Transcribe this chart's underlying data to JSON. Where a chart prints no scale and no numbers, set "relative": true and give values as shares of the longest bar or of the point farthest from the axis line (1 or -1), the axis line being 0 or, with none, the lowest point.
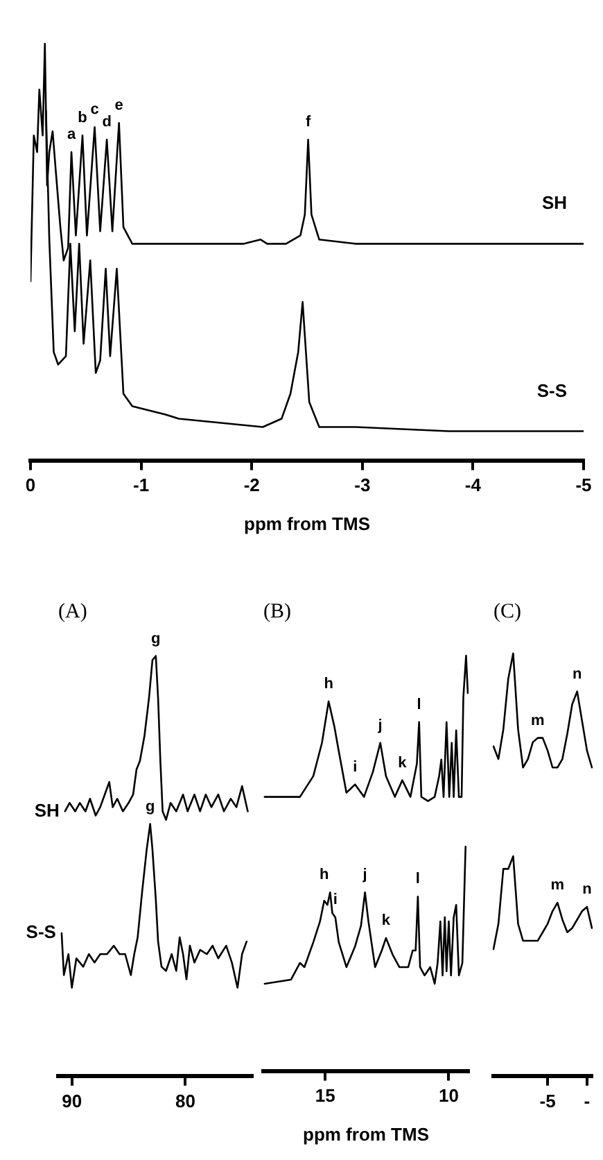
{
  "chart_data": [
    {
      "type": "line",
      "relative": true,
      "xlabel": "ppm from TMS",
      "xlim": [
        0,
        -5
      ],
      "xticks": [
        0,
        -1,
        -2,
        -3,
        -4,
        -5
      ],
      "legend": false,
      "series": [
        {
          "name": "SH",
          "color": "#000000",
          "x": [
            0,
            -0.03,
            -0.06,
            -0.08,
            -0.11,
            -0.13,
            -0.15,
            -0.17,
            -0.2,
            -0.23,
            -0.27,
            -0.3,
            -0.34,
            -0.37,
            -0.41,
            -0.47,
            -0.51,
            -0.58,
            -0.63,
            -0.69,
            -0.74,
            -0.8,
            -0.84,
            -0.92,
            -1.26,
            -1.93,
            -2.08,
            -2.14,
            -2.31,
            -2.44,
            -2.48,
            -2.51,
            -2.54,
            -2.61,
            -2.94,
            -3.78,
            -5
          ],
          "values": [
            0.43,
            0.78,
            0.74,
            0.89,
            0.78,
            1,
            0.66,
            0.74,
            0.79,
            0.69,
            0.56,
            0.48,
            0.51,
            0.74,
            0.54,
            0.78,
            0.54,
            0.8,
            0.55,
            0.77,
            0.55,
            0.81,
            0.56,
            0.52,
            0.52,
            0.52,
            0.53,
            0.52,
            0.52,
            0.54,
            0.59,
            0.77,
            0.59,
            0.53,
            0.52,
            0.52,
            0.52
          ]
        },
        {
          "name": "S-S",
          "color": "#000000",
          "x": [
            -0.14,
            -0.17,
            -0.21,
            -0.25,
            -0.32,
            -0.36,
            -0.4,
            -0.44,
            -0.48,
            -0.54,
            -0.59,
            -0.63,
            -0.68,
            -0.72,
            -0.78,
            -0.82,
            -0.84,
            -0.92,
            -1.22,
            -1.34,
            -2.1,
            -2.27,
            -2.35,
            -2.42,
            -2.46,
            -2.49,
            -2.52,
            -2.61,
            -2.94,
            -3.78,
            -5
          ],
          "values": [
            0.84,
            0.53,
            0.26,
            0.23,
            0.25,
            0.52,
            0.31,
            0.52,
            0.28,
            0.48,
            0.21,
            0.24,
            0.46,
            0.25,
            0.46,
            0.26,
            0.16,
            0.13,
            0.11,
            0.1,
            0.08,
            0.1,
            0.16,
            0.26,
            0.38,
            0.26,
            0.14,
            0.08,
            0.08,
            0.07,
            0.07
          ]
        }
      ],
      "annotations": [
        {
          "text": "a",
          "x": -0.37,
          "y": 0.74
        },
        {
          "text": "b",
          "x": -0.47,
          "y": 0.78
        },
        {
          "text": "c",
          "x": -0.58,
          "y": 0.8
        },
        {
          "text": "d",
          "x": -0.69,
          "y": 0.77
        },
        {
          "text": "e",
          "x": -0.8,
          "y": 0.81
        },
        {
          "text": "f",
          "x": -2.51,
          "y": 0.77
        }
      ]
    },
    {
      "type": "line",
      "relative": true,
      "title": "(A)",
      "xlim": [
        91.2,
        74.1
      ],
      "xticks": [
        90,
        80
      ],
      "legend": false,
      "series": [
        {
          "name": "SH",
          "color": "#000000",
          "x": [
            90.6,
            90.2,
            89.7,
            89.3,
            88.8,
            88.4,
            87.9,
            87.5,
            87.1,
            86.7,
            86.4,
            86.0,
            85.5,
            85.0,
            84.6,
            84.3,
            84.0,
            83.6,
            83.2,
            82.9,
            82.6,
            82.4,
            82.2,
            82.0,
            81.7,
            81.3,
            80.8,
            80.2,
            79.8,
            79.2,
            78.7,
            78.2,
            77.7,
            77.1,
            76.6,
            76.0,
            75.5,
            75.0,
            74.5
          ],
          "values": [
            0.63,
            0.65,
            0.63,
            0.65,
            0.63,
            0.66,
            0.62,
            0.64,
            0.67,
            0.7,
            0.64,
            0.66,
            0.63,
            0.65,
            0.67,
            0.73,
            0.75,
            0.81,
            0.9,
            0.99,
            1,
            0.9,
            0.75,
            0.63,
            0.61,
            0.65,
            0.63,
            0.67,
            0.63,
            0.67,
            0.63,
            0.67,
            0.64,
            0.67,
            0.63,
            0.66,
            0.64,
            0.69,
            0.63
          ]
        },
        {
          "name": "S-S",
          "color": "#000000",
          "x": [
            90.9,
            90.7,
            90.3,
            90.0,
            89.6,
            89.0,
            88.5,
            88.0,
            87.5,
            86.9,
            86.3,
            85.8,
            85.3,
            84.8,
            84.5,
            84.2,
            83.8,
            83.4,
            83.1,
            82.9,
            82.6,
            82.4,
            82.1,
            81.7,
            81.2,
            80.8,
            80.5,
            80.2,
            79.9,
            79.6,
            79.2,
            78.7,
            78.1,
            77.6,
            77.1,
            76.4,
            75.9,
            75.4,
            75.0,
            74.6
          ],
          "values": [
            0.34,
            0.24,
            0.29,
            0.21,
            0.28,
            0.26,
            0.29,
            0.27,
            0.29,
            0.29,
            0.31,
            0.29,
            0.29,
            0.24,
            0.29,
            0.33,
            0.44,
            0.54,
            0.6,
            0.54,
            0.42,
            0.32,
            0.26,
            0.25,
            0.29,
            0.25,
            0.33,
            0.29,
            0.23,
            0.31,
            0.27,
            0.3,
            0.29,
            0.31,
            0.28,
            0.31,
            0.27,
            0.21,
            0.29,
            0.32
          ]
        }
      ],
      "annotations": [
        {
          "text": "g",
          "x": 82.6,
          "y": 1
        },
        {
          "text": "g",
          "x": 83.1,
          "y": 0.6
        }
      ]
    },
    {
      "type": "line",
      "relative": true,
      "title": "(B)",
      "xlabel": "ppm from TMS",
      "xlim": [
        17.5,
        9.2
      ],
      "xticks": [
        15,
        10
      ],
      "legend": false,
      "series": [
        {
          "color": "#000000",
          "x": [
            17.45,
            16.02,
            15.48,
            15.13,
            14.86,
            14.63,
            14.45,
            14.14,
            13.79,
            13.43,
            13.07,
            12.77,
            12.54,
            12.18,
            11.88,
            11.55,
            11.29,
            11.2,
            11.11,
            10.84,
            10.57,
            10.39,
            10.3,
            10.21,
            10.09,
            9.98,
            9.88,
            9.8,
            9.7,
            9.59,
            9.48,
            9.41,
            9.3,
            9.23
          ],
          "values": [
            0.66,
            0.66,
            0.71,
            0.79,
            0.89,
            0.83,
            0.77,
            0.67,
            0.69,
            0.66,
            0.72,
            0.79,
            0.71,
            0.66,
            0.7,
            0.66,
            0.74,
            0.84,
            0.66,
            0.65,
            0.66,
            0.71,
            0.75,
            0.66,
            0.84,
            0.66,
            0.79,
            0.66,
            0.82,
            0.66,
            0.66,
            0.9,
            1,
            0.91
          ]
        },
        {
          "color": "#000000",
          "x": [
            17.45,
            16.38,
            16.02,
            15.84,
            15.48,
            15.21,
            15.04,
            14.91,
            14.8,
            14.71,
            14.59,
            14.45,
            14.14,
            13.79,
            13.55,
            13.39,
            13.25,
            12.98,
            12.71,
            12.54,
            12.27,
            12.0,
            11.64,
            11.46,
            11.34,
            11.25,
            11.16,
            10.98,
            10.75,
            10.57,
            10.45,
            10.34,
            10.25,
            10.16,
            10.09,
            10.0,
            9.91,
            9.8,
            9.7,
            9.59,
            9.45,
            9.32
          ],
          "values": [
            0.21,
            0.22,
            0.26,
            0.25,
            0.31,
            0.36,
            0.41,
            0.4,
            0.43,
            0.38,
            0.37,
            0.31,
            0.25,
            0.3,
            0.35,
            0.43,
            0.36,
            0.25,
            0.29,
            0.32,
            0.28,
            0.25,
            0.25,
            0.29,
            0.29,
            0.42,
            0.25,
            0.23,
            0.25,
            0.21,
            0.26,
            0.36,
            0.23,
            0.37,
            0.24,
            0.36,
            0.23,
            0.37,
            0.4,
            0.23,
            0.26,
            0.54
          ]
        }
      ],
      "annotations": [
        {
          "text": "h",
          "x": 14.86,
          "y": 0.89
        },
        {
          "text": "i",
          "x": 13.79,
          "y": 0.69
        },
        {
          "text": "j",
          "x": 12.77,
          "y": 0.79
        },
        {
          "text": "k",
          "x": 11.88,
          "y": 0.7
        },
        {
          "text": "l",
          "x": 11.2,
          "y": 0.84
        },
        {
          "text": "h",
          "x": 15.04,
          "y": 0.43
        },
        {
          "text": "i",
          "x": 14.59,
          "y": 0.37
        },
        {
          "text": "j",
          "x": 13.39,
          "y": 0.43
        },
        {
          "text": "k",
          "x": 12.54,
          "y": 0.32
        },
        {
          "text": "l",
          "x": 11.25,
          "y": 0.42
        }
      ]
    },
    {
      "type": "line",
      "relative": true,
      "title": "(C)",
      "categories": [
        null,
        null,
        null,
        null,
        null,
        null,
        null,
        null,
        null,
        null,
        null,
        "-5",
        null,
        null,
        null,
        null,
        null,
        null,
        null,
        "-",
        null
      ],
      "legend": false,
      "series": [
        {
          "color": "#000000",
          "values": [
            0.78,
            0.75,
            0.82,
            0.94,
            1,
            0.82,
            0.73,
            0.75,
            0.79,
            0.8,
            0.8,
            0.77,
            0.73,
            0.73,
            0.75,
            0.81,
            0.88,
            0.91,
            0.84,
            0.77,
            0.73
          ]
        },
        {
          "color": "#000000",
          "values": [
            0.3,
            0.36,
            0.49,
            0.49,
            0.52,
            0.36,
            0.32,
            0.32,
            0.32,
            0.32,
            0.34,
            0.36,
            0.39,
            0.41,
            0.37,
            0.34,
            0.35,
            0.37,
            0.39,
            0.4,
            0.35
          ]
        }
      ],
      "annotations": [
        {
          "text": "m",
          "y": 0.8
        },
        {
          "text": "n",
          "y": 0.91
        },
        {
          "text": "m",
          "y": 0.41
        },
        {
          "text": "n",
          "y": 0.4
        }
      ]
    }
  ]
}
